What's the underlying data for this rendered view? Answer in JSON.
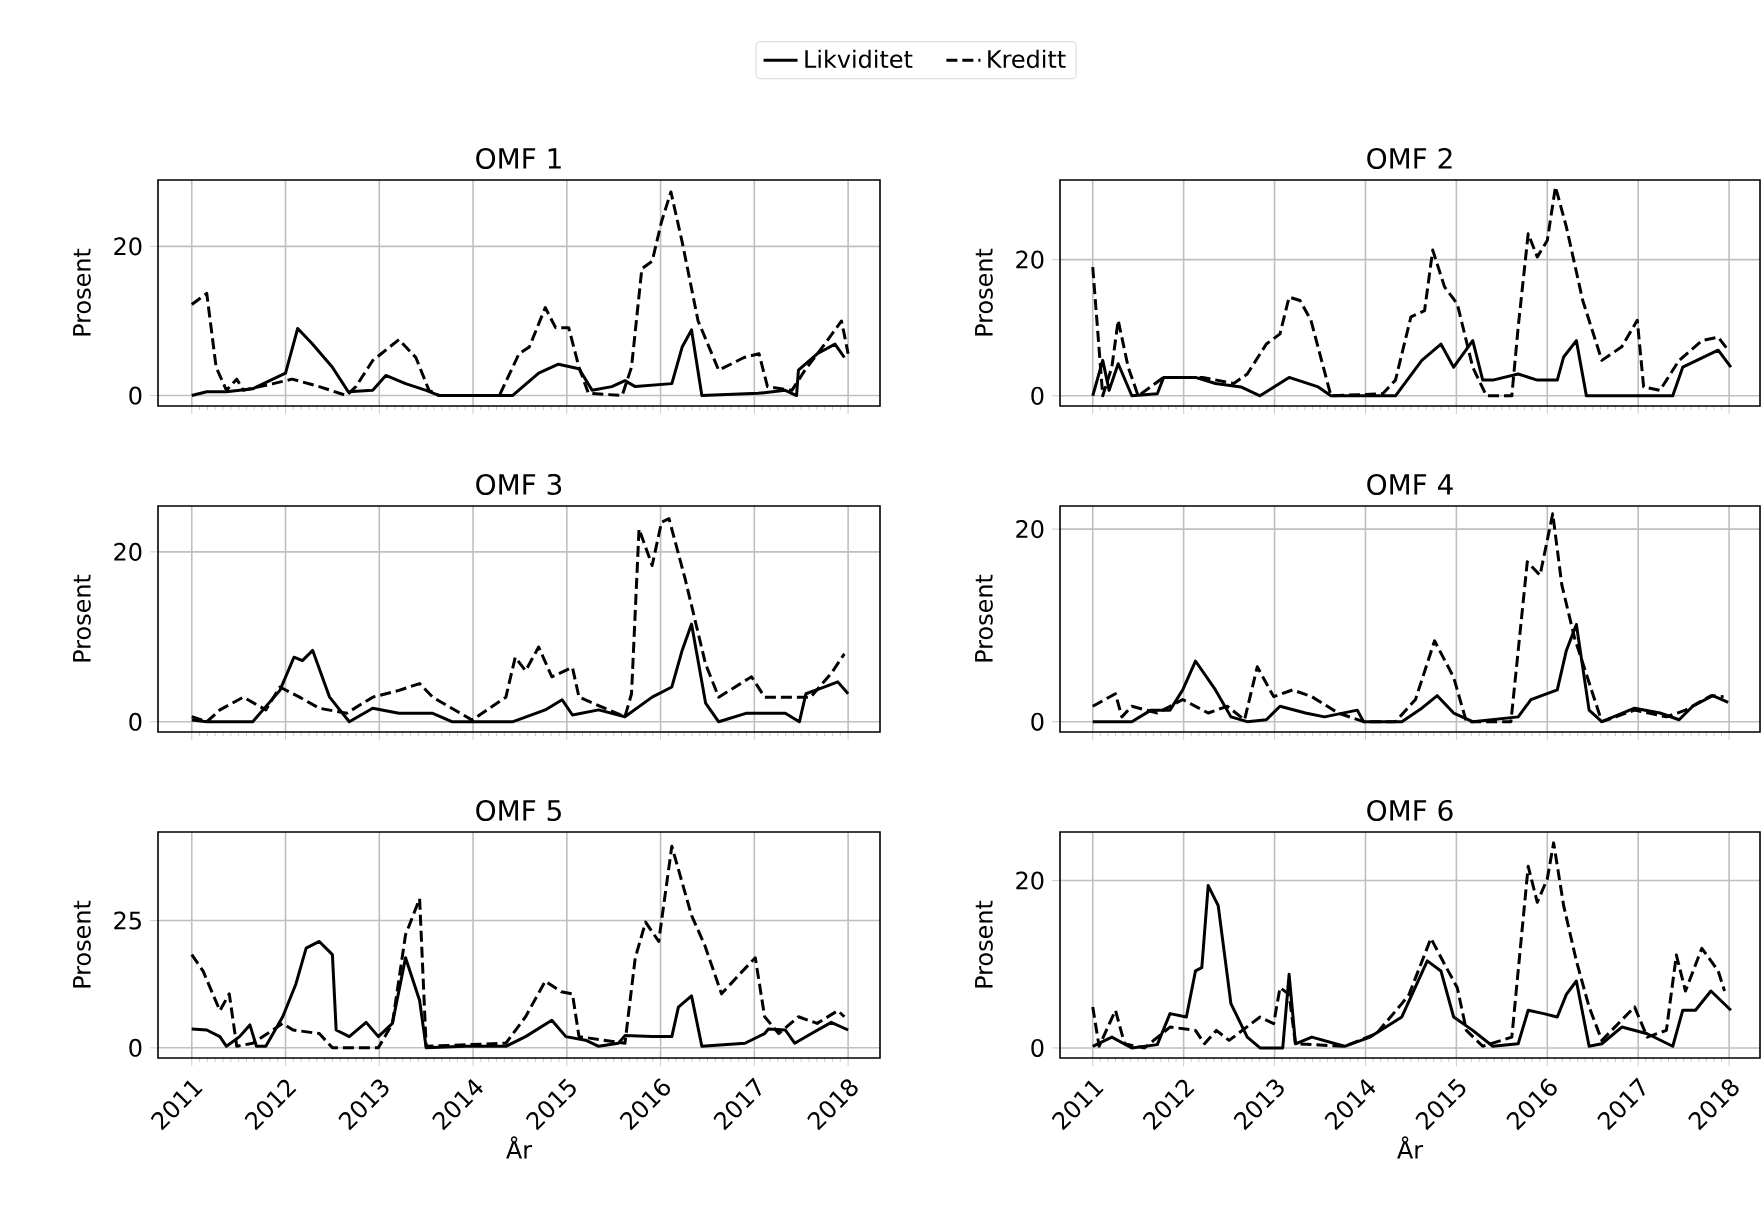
{
  "chart_data": [
    {
      "type": "line",
      "title": "OMF 1",
      "ylabel": "Prosent",
      "xlim": [
        2010.64,
        2018.34
      ],
      "ylim": [
        -1.4,
        28.9
      ],
      "xticks": [
        2011,
        2012,
        2013,
        2014,
        2015,
        2016,
        2017,
        2018
      ],
      "yticks": [
        0,
        20
      ],
      "grid": true,
      "legend": "top",
      "tick_labels": "y",
      "series": [
        {
          "name": "Likviditet",
          "color": "#000000",
          "line_style": "solid",
          "x": [
            2011.0,
            2011.16,
            2011.37,
            2011.65,
            2012.0,
            2012.13,
            2012.28,
            2012.5,
            2012.67,
            2012.93,
            2013.07,
            2013.28,
            2013.5,
            2013.64,
            2014.42,
            2014.7,
            2014.91,
            2015.13,
            2015.27,
            2015.48,
            2015.62,
            2015.73,
            2016.12,
            2016.23,
            2016.33,
            2016.44,
            2017.04,
            2017.33,
            2017.45,
            2017.47,
            2017.67,
            2017.86,
            2017.96
          ],
          "values": [
            0,
            0.5,
            0.5,
            0.9,
            3,
            9,
            7,
            3.8,
            0.5,
            0.7,
            2.7,
            1.6,
            0.7,
            0,
            0,
            3,
            4.2,
            3.6,
            0.7,
            1.2,
            2,
            1.2,
            1.6,
            6.5,
            8.8,
            0,
            0.3,
            0.7,
            0,
            3.4,
            5.6,
            6.9,
            5.1
          ]
        },
        {
          "name": "Kreditt",
          "color": "#000000",
          "line_style": "dashed",
          "x": [
            2011.0,
            2011.16,
            2011.26,
            2011.37,
            2011.48,
            2011.55,
            2011.87,
            2012.07,
            2012.36,
            2012.65,
            2012.75,
            2012.93,
            2013.21,
            2013.39,
            2013.53,
            2013.64,
            2014.28,
            2014.49,
            2014.6,
            2014.77,
            2014.88,
            2015.02,
            2015.13,
            2015.23,
            2015.59,
            2015.69,
            2015.8,
            2015.91,
            2016.01,
            2016.11,
            2016.23,
            2016.4,
            2016.62,
            2016.89,
            2017.05,
            2017.14,
            2017.4,
            2017.54,
            2017.75,
            2017.93,
            2018.0
          ],
          "values": [
            12.2,
            13.7,
            3.8,
            0.7,
            2.2,
            0.7,
            1.6,
            2.2,
            1.2,
            0,
            1.2,
            4.7,
            7.5,
            5.1,
            0.7,
            0,
            0,
            5.6,
            6.5,
            11.8,
            9.1,
            9.1,
            3.8,
            0.3,
            0,
            3.8,
            17,
            18,
            23.3,
            27.3,
            20.6,
            10,
            3.4,
            5.1,
            5.6,
            1.2,
            0.7,
            3.4,
            6.9,
            10,
            5.6
          ]
        }
      ]
    },
    {
      "type": "line",
      "title": "OMF 2",
      "ylabel": "Prosent",
      "xlim": [
        2010.64,
        2018.34
      ],
      "ylim": [
        -1.5,
        31.7
      ],
      "xticks": [
        2011,
        2012,
        2013,
        2014,
        2015,
        2016,
        2017,
        2018
      ],
      "yticks": [
        0,
        20
      ],
      "grid": true,
      "tick_labels": "y",
      "series": [
        {
          "color": "#000000",
          "line_style": "solid",
          "x": [
            2011.0,
            2011.11,
            2011.18,
            2011.28,
            2011.43,
            2011.71,
            2011.78,
            2012.13,
            2012.35,
            2012.63,
            2012.84,
            2013.16,
            2013.48,
            2013.62,
            2014.33,
            2014.62,
            2014.83,
            2014.97,
            2015.18,
            2015.29,
            2015.4,
            2015.68,
            2015.89,
            2016.11,
            2016.18,
            2016.32,
            2016.43,
            2017.1,
            2017.38,
            2017.49,
            2017.88,
            2018.02
          ],
          "values": [
            0,
            5.2,
            0.8,
            4.7,
            0,
            0.3,
            2.7,
            2.7,
            1.8,
            1.3,
            0,
            2.7,
            1.3,
            0,
            0,
            5.2,
            7.6,
            4.2,
            8.1,
            2.3,
            2.3,
            3.2,
            2.3,
            2.3,
            5.7,
            8.1,
            0,
            0,
            0,
            4.2,
            6.7,
            4.2
          ]
        },
        {
          "color": "#000000",
          "line_style": "dashed",
          "x": [
            2011.0,
            2011.11,
            2011.21,
            2011.28,
            2011.39,
            2011.5,
            2011.78,
            2012.21,
            2012.55,
            2012.7,
            2012.91,
            2013.06,
            2013.16,
            2013.28,
            2013.4,
            2013.62,
            2014.19,
            2014.33,
            2014.5,
            2014.65,
            2014.74,
            2014.87,
            2015.01,
            2015.18,
            2015.33,
            2015.61,
            2015.68,
            2015.79,
            2015.89,
            2016.0,
            2016.09,
            2016.21,
            2016.39,
            2016.6,
            2016.82,
            2016.99,
            2017.06,
            2017.24,
            2017.45,
            2017.7,
            2017.88,
            2017.99
          ],
          "values": [
            18.9,
            0,
            4.2,
            11.1,
            4.2,
            0,
            2.7,
            2.7,
            1.8,
            3.2,
            7.6,
            9.1,
            14.5,
            14,
            11.1,
            0,
            0.3,
            2.3,
            11.6,
            12.5,
            21.4,
            16,
            13.5,
            4.2,
            0,
            0,
            10.1,
            23.8,
            20.4,
            22.8,
            30.7,
            24.8,
            14,
            5.2,
            7.2,
            11.1,
            1.3,
            0.8,
            5.2,
            8.1,
            8.6,
            6.7
          ]
        }
      ]
    },
    {
      "type": "line",
      "title": "OMF 3",
      "ylabel": "Prosent",
      "xlim": [
        2010.64,
        2018.34
      ],
      "ylim": [
        -1.2,
        25.4
      ],
      "xticks": [
        2011,
        2012,
        2013,
        2014,
        2015,
        2016,
        2017,
        2018
      ],
      "yticks": [
        0,
        20
      ],
      "grid": true,
      "tick_labels": "y",
      "series": [
        {
          "color": "#000000",
          "line_style": "solid",
          "x": [
            2011.0,
            2011.16,
            2011.65,
            2011.94,
            2012.09,
            2012.18,
            2012.29,
            2012.47,
            2012.68,
            2012.93,
            2013.21,
            2013.57,
            2013.78,
            2014.42,
            2014.77,
            2014.95,
            2015.06,
            2015.34,
            2015.62,
            2015.91,
            2016.12,
            2016.23,
            2016.33,
            2016.48,
            2016.62,
            2016.91,
            2017.33,
            2017.48,
            2017.55,
            2017.75,
            2017.89,
            2018.0
          ],
          "values": [
            0.2,
            0,
            0,
            3.7,
            7.6,
            7.2,
            8.4,
            2.9,
            0,
            1.6,
            1,
            1,
            0,
            0,
            1.4,
            2.6,
            0.8,
            1.4,
            0.6,
            2.9,
            4.1,
            8.4,
            11.5,
            2.2,
            0,
            1,
            1,
            0,
            3.3,
            4.1,
            4.7,
            3.3
          ]
        },
        {
          "color": "#000000",
          "line_style": "dashed",
          "x": [
            2011.0,
            2011.16,
            2011.3,
            2011.55,
            2011.79,
            2011.94,
            2012.15,
            2012.36,
            2012.65,
            2012.93,
            2013.21,
            2013.43,
            2013.57,
            2013.99,
            2014.35,
            2014.45,
            2014.56,
            2014.7,
            2014.84,
            2015.06,
            2015.13,
            2015.62,
            2015.69,
            2015.77,
            2015.91,
            2016.01,
            2016.09,
            2016.26,
            2016.48,
            2016.62,
            2016.97,
            2017.11,
            2017.33,
            2017.6,
            2017.82,
            2017.96
          ],
          "values": [
            0.6,
            0,
            1.4,
            2.9,
            1.4,
            4.1,
            2.9,
            1.6,
            1,
            2.9,
            3.7,
            4.5,
            2.9,
            0.2,
            2.9,
            7.6,
            6,
            8.8,
            5.3,
            6.4,
            2.9,
            0.6,
            3.3,
            22.7,
            18.4,
            23.5,
            23.9,
            16.9,
            6.8,
            2.9,
            5.3,
            2.9,
            2.9,
            2.9,
            5.7,
            8
          ]
        }
      ]
    },
    {
      "type": "line",
      "title": "OMF 4",
      "ylabel": "Prosent",
      "xlim": [
        2010.64,
        2018.34
      ],
      "ylim": [
        -1.07,
        22.4
      ],
      "xticks": [
        2011,
        2012,
        2013,
        2014,
        2015,
        2016,
        2017,
        2018
      ],
      "yticks": [
        0,
        20
      ],
      "grid": true,
      "tick_labels": "y",
      "series": [
        {
          "color": "#000000",
          "line_style": "solid",
          "x": [
            2011.0,
            2011.43,
            2011.64,
            2011.85,
            2011.99,
            2012.13,
            2012.35,
            2012.52,
            2012.7,
            2012.91,
            2013.06,
            2013.34,
            2013.55,
            2013.91,
            2013.98,
            2014.4,
            2014.62,
            2014.79,
            2014.97,
            2015.18,
            2015.68,
            2015.82,
            2016.11,
            2016.21,
            2016.32,
            2016.46,
            2016.6,
            2016.96,
            2017.24,
            2017.45,
            2017.6,
            2017.82,
            2017.99
          ],
          "values": [
            0,
            0,
            1.2,
            1.2,
            3.3,
            6.3,
            3.3,
            0.5,
            0,
            0.2,
            1.6,
            0.9,
            0.5,
            1.2,
            0,
            0,
            1.4,
            2.7,
            0.9,
            0,
            0.5,
            2.3,
            3.3,
            7.4,
            10.1,
            1.2,
            0,
            1.4,
            0.9,
            0.2,
            1.6,
            2.7,
            2
          ]
        },
        {
          "color": "#000000",
          "line_style": "dashed",
          "x": [
            2011.0,
            2011.25,
            2011.32,
            2011.43,
            2011.71,
            2011.99,
            2012.27,
            2012.48,
            2012.67,
            2012.81,
            2012.99,
            2013.2,
            2013.41,
            2013.7,
            2013.98,
            2014.33,
            2014.55,
            2014.76,
            2014.97,
            2015.11,
            2015.6,
            2015.78,
            2015.92,
            2016.06,
            2016.16,
            2016.3,
            2016.6,
            2016.96,
            2017.31,
            2017.52,
            2017.8,
            2017.94
          ],
          "values": [
            1.6,
            2.9,
            0.5,
            1.6,
            0.9,
            2.3,
            0.9,
            1.6,
            0.2,
            5.7,
            2.6,
            3.3,
            2.6,
            0.9,
            0,
            0,
            2.3,
            8.4,
            4.6,
            0,
            0,
            16.6,
            15.2,
            21.6,
            14.2,
            8.7,
            0,
            1.2,
            0.5,
            1.2,
            2.7,
            2.6
          ]
        }
      ]
    },
    {
      "type": "line",
      "title": "OMF 5",
      "xlabel": "År",
      "ylabel": "Prosent",
      "xlim": [
        2010.64,
        2018.34
      ],
      "ylim": [
        -2,
        42.4
      ],
      "xticks": [
        2011,
        2012,
        2013,
        2014,
        2015,
        2016,
        2017,
        2018
      ],
      "yticks": [
        0,
        25
      ],
      "grid": true,
      "series": [
        {
          "color": "#000000",
          "line_style": "solid",
          "x": [
            2011.0,
            2011.16,
            2011.3,
            2011.37,
            2011.51,
            2011.62,
            2011.69,
            2011.79,
            2011.97,
            2012.11,
            2012.22,
            2012.36,
            2012.5,
            2012.54,
            2012.68,
            2012.86,
            2012.99,
            2013.14,
            2013.28,
            2013.43,
            2013.5,
            2013.92,
            2014.35,
            2014.56,
            2014.84,
            2014.99,
            2015.2,
            2015.34,
            2015.55,
            2015.62,
            2015.91,
            2016.12,
            2016.19,
            2016.33,
            2016.44,
            2016.9,
            2017.11,
            2017.15,
            2017.33,
            2017.43,
            2017.61,
            2017.82,
            2018.0
          ],
          "values": [
            3.7,
            3.5,
            2.2,
            0.3,
            2.2,
            4.5,
            0.3,
            0.3,
            6.1,
            12.5,
            19.6,
            20.9,
            18.3,
            3.5,
            2.2,
            5,
            2.2,
            4.8,
            17.7,
            9.3,
            0,
            0.3,
            0.3,
            2.2,
            5.4,
            2.2,
            1.5,
            0.3,
            0.9,
            2.4,
            2.2,
            2.2,
            8,
            10.2,
            0.3,
            0.9,
            2.8,
            3.7,
            3.5,
            0.9,
            2.8,
            5,
            3.5
          ]
        },
        {
          "color": "#000000",
          "line_style": "dashed",
          "x": [
            2011.0,
            2011.12,
            2011.3,
            2011.4,
            2011.48,
            2011.65,
            2011.97,
            2012.08,
            2012.36,
            2012.5,
            2012.99,
            2013.14,
            2013.28,
            2013.43,
            2013.5,
            2014.35,
            2014.56,
            2014.77,
            2014.94,
            2015.06,
            2015.13,
            2015.62,
            2015.73,
            2015.84,
            2015.98,
            2016.12,
            2016.33,
            2016.47,
            2016.65,
            2016.84,
            2017.01,
            2017.11,
            2017.26,
            2017.47,
            2017.67,
            2017.89,
            2017.96
          ],
          "values": [
            18.3,
            15.1,
            7.3,
            10.6,
            0.3,
            0.9,
            4.8,
            3.5,
            2.8,
            0,
            0,
            4.8,
            22.2,
            29.3,
            0.3,
            0.9,
            6.1,
            13.1,
            11,
            10.6,
            2.2,
            0.9,
            17.7,
            24.7,
            20.9,
            39.6,
            26,
            20.2,
            10.6,
            14.4,
            17.7,
            6.1,
            2.8,
            6.1,
            4.8,
            7.3,
            6.1
          ]
        }
      ]
    },
    {
      "type": "line",
      "title": "OMF 6",
      "xlabel": "År",
      "ylabel": "Prosent",
      "xlim": [
        2010.64,
        2018.34
      ],
      "ylim": [
        -1.2,
        25.8
      ],
      "xticks": [
        2011,
        2012,
        2013,
        2014,
        2015,
        2016,
        2017,
        2018
      ],
      "yticks": [
        0,
        20
      ],
      "grid": true,
      "series": [
        {
          "color": "#000000",
          "line_style": "solid",
          "x": [
            2011.0,
            2011.21,
            2011.43,
            2011.71,
            2011.85,
            2012.03,
            2012.13,
            2012.2,
            2012.27,
            2012.38,
            2012.52,
            2012.7,
            2012.84,
            2013.09,
            2013.16,
            2013.23,
            2013.41,
            2013.77,
            2014.05,
            2014.4,
            2014.68,
            2014.83,
            2014.97,
            2015.18,
            2015.4,
            2015.68,
            2015.79,
            2015.96,
            2016.11,
            2016.21,
            2016.32,
            2016.46,
            2016.6,
            2016.82,
            2017.1,
            2017.38,
            2017.49,
            2017.63,
            2017.8,
            2018.02
          ],
          "values": [
            0.2,
            1.3,
            0,
            0.4,
            4.1,
            3.7,
            9.2,
            9.6,
            19.4,
            17,
            5.3,
            1.3,
            0,
            0,
            8.8,
            0.5,
            1.3,
            0.2,
            1.3,
            3.7,
            10.4,
            9.2,
            3.7,
            2.1,
            0.2,
            0.5,
            4.5,
            4.1,
            3.7,
            6.4,
            8,
            0.2,
            0.5,
            2.5,
            1.7,
            0.2,
            4.5,
            4.5,
            6.8,
            4.5
          ]
        },
        {
          "color": "#000000",
          "line_style": "dashed",
          "x": [
            2011.0,
            2011.07,
            2011.25,
            2011.35,
            2011.57,
            2011.85,
            2012.13,
            2012.23,
            2012.36,
            2012.5,
            2012.84,
            2012.99,
            2013.06,
            2013.16,
            2013.23,
            2013.77,
            2014.12,
            2014.4,
            2014.48,
            2014.72,
            2014.87,
            2015.01,
            2015.11,
            2015.29,
            2015.61,
            2015.79,
            2015.89,
            2016.0,
            2016.07,
            2016.18,
            2016.32,
            2016.46,
            2016.6,
            2016.96,
            2017.1,
            2017.31,
            2017.42,
            2017.52,
            2017.7,
            2017.88,
            2017.95
          ],
          "values": [
            4.9,
            0.2,
            4.5,
            0.5,
            0,
            2.5,
            2.1,
            0.5,
            2.1,
            0.9,
            3.7,
            2.9,
            7.2,
            6.4,
            0.5,
            0.2,
            1.7,
            5.3,
            6.4,
            13.1,
            10,
            7.2,
            2.1,
            0.2,
            1.3,
            21.7,
            17.4,
            20.2,
            24.5,
            17,
            10.4,
            4.9,
            0.9,
            4.9,
            1.3,
            2.1,
            11.1,
            6.8,
            11.9,
            9.2,
            6.8
          ]
        }
      ]
    }
  ]
}
